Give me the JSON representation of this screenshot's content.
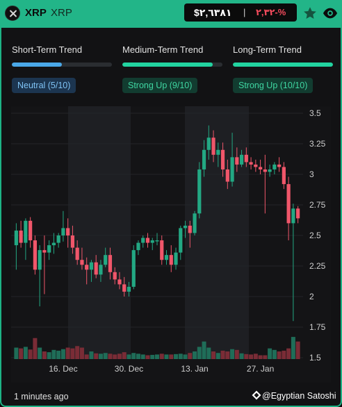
{
  "header": {
    "symbol": "XRP",
    "name": "XRP",
    "price": "$٢,٦٣٨١",
    "separator": "|",
    "change": "٢,٣٢-%",
    "close_icon": "close-icon",
    "star_icon": "star-icon",
    "eye_icon": "eye-icon"
  },
  "trends": [
    {
      "label": "Short-Term Trend",
      "badge": "Neutral (5/10)",
      "level": 0.5,
      "color": "#4aa8e8",
      "kind": "neutral"
    },
    {
      "label": "Medium-Term Trend",
      "badge": "Strong Up (9/10)",
      "level": 0.9,
      "color": "#22d3a0",
      "kind": "up"
    },
    {
      "label": "Long-Term Trend",
      "badge": "Strong Up (10/10)",
      "level": 1.0,
      "color": "#22d3a0",
      "kind": "up"
    }
  ],
  "chart_data": {
    "type": "candlestick",
    "y_ticks": [
      "3.5",
      "3.25",
      "3",
      "2.75",
      "2.5",
      "2.25",
      "2",
      "1.75",
      "1.5"
    ],
    "ylim": [
      1.5,
      3.5
    ],
    "x_labels": [
      "16. Dec",
      "30. Dec",
      "13. Jan",
      "27. Jan"
    ],
    "x_label_index": [
      10,
      24,
      38,
      52
    ],
    "colors": {
      "up": "#23a883",
      "down": "#f0566a",
      "vol_up": "#1f6d58",
      "vol_down": "#7a2c36"
    },
    "candles": [
      [
        2.42,
        2.6,
        2.22,
        2.54
      ],
      [
        2.54,
        2.62,
        2.4,
        2.44
      ],
      [
        2.44,
        2.64,
        2.3,
        2.62
      ],
      [
        2.62,
        2.65,
        2.4,
        2.46
      ],
      [
        2.46,
        2.5,
        2.18,
        2.22
      ],
      [
        2.22,
        2.42,
        1.92,
        2.38
      ],
      [
        2.38,
        2.5,
        2.02,
        2.36
      ],
      [
        2.36,
        2.46,
        2.3,
        2.42
      ],
      [
        2.42,
        2.52,
        2.35,
        2.44
      ],
      [
        2.44,
        2.52,
        2.4,
        2.5
      ],
      [
        2.5,
        2.7,
        2.45,
        2.56
      ],
      [
        2.56,
        2.64,
        2.4,
        2.5
      ],
      [
        2.5,
        2.58,
        2.35,
        2.4
      ],
      [
        2.4,
        2.46,
        2.26,
        2.3
      ],
      [
        2.3,
        2.4,
        2.22,
        2.26
      ],
      [
        2.26,
        2.32,
        2.1,
        2.22
      ],
      [
        2.22,
        2.3,
        2.12,
        2.28
      ],
      [
        2.28,
        2.34,
        2.15,
        2.18
      ],
      [
        2.18,
        2.3,
        2.12,
        2.26
      ],
      [
        2.26,
        2.4,
        2.24,
        2.34
      ],
      [
        2.34,
        2.4,
        2.14,
        2.2
      ],
      [
        2.2,
        2.24,
        2.1,
        2.14
      ],
      [
        2.14,
        2.2,
        2.06,
        2.1
      ],
      [
        2.1,
        2.16,
        2.0,
        2.04
      ],
      [
        2.04,
        2.12,
        2.0,
        2.08
      ],
      [
        2.08,
        2.42,
        2.06,
        2.38
      ],
      [
        2.38,
        2.46,
        2.34,
        2.44
      ],
      [
        2.44,
        2.5,
        2.4,
        2.48
      ],
      [
        2.48,
        2.52,
        2.4,
        2.44
      ],
      [
        2.44,
        2.48,
        2.38,
        2.46
      ],
      [
        2.46,
        2.52,
        2.42,
        2.46
      ],
      [
        2.46,
        2.5,
        2.26,
        2.3
      ],
      [
        2.3,
        2.38,
        2.26,
        2.34
      ],
      [
        2.34,
        2.42,
        2.2,
        2.26
      ],
      [
        2.26,
        2.4,
        2.22,
        2.36
      ],
      [
        2.36,
        2.58,
        2.3,
        2.56
      ],
      [
        2.56,
        2.62,
        2.48,
        2.58
      ],
      [
        2.58,
        2.62,
        2.4,
        2.52
      ],
      [
        2.52,
        2.7,
        2.5,
        2.68
      ],
      [
        2.68,
        3.1,
        2.64,
        3.04
      ],
      [
        3.04,
        3.28,
        2.98,
        3.2
      ],
      [
        3.2,
        3.4,
        3.12,
        3.3
      ],
      [
        3.3,
        3.36,
        3.1,
        3.16
      ],
      [
        3.16,
        3.26,
        3.06,
        3.2
      ],
      [
        3.2,
        3.26,
        2.98,
        3.04
      ],
      [
        3.04,
        3.12,
        2.88,
        2.94
      ],
      [
        2.94,
        3.34,
        2.9,
        3.14
      ],
      [
        3.14,
        3.22,
        3.02,
        3.08
      ],
      [
        3.08,
        3.2,
        3.06,
        3.16
      ],
      [
        3.16,
        3.22,
        3.06,
        3.1
      ],
      [
        3.1,
        3.14,
        3.04,
        3.08
      ],
      [
        3.08,
        3.12,
        3.02,
        3.06
      ],
      [
        3.06,
        3.12,
        3.0,
        3.04
      ],
      [
        3.04,
        3.16,
        2.68,
        3.02
      ],
      [
        3.02,
        3.08,
        2.98,
        3.04
      ],
      [
        3.04,
        3.1,
        3.0,
        3.08
      ],
      [
        3.08,
        3.14,
        3.02,
        3.06
      ],
      [
        3.06,
        3.1,
        2.88,
        2.92
      ],
      [
        2.92,
        2.98,
        2.46,
        2.6
      ],
      [
        2.6,
        2.76,
        1.8,
        2.72
      ],
      [
        2.72,
        2.74,
        2.6,
        2.64
      ]
    ],
    "volumes": [
      0.3,
      0.28,
      0.32,
      0.25,
      0.55,
      0.3,
      0.2,
      0.18,
      0.24,
      0.22,
      0.26,
      0.3,
      0.28,
      0.34,
      0.3,
      0.12,
      0.2,
      0.15,
      0.14,
      0.16,
      0.14,
      0.12,
      0.14,
      0.18,
      0.12,
      0.16,
      0.14,
      0.12,
      0.1,
      0.11,
      0.12,
      0.14,
      0.12,
      0.12,
      0.13,
      0.14,
      0.12,
      0.16,
      0.2,
      0.32,
      0.46,
      0.3,
      0.2,
      0.16,
      0.22,
      0.2,
      0.26,
      0.24,
      0.15,
      0.13,
      0.12,
      0.14,
      0.1,
      0.1,
      0.28,
      0.24,
      0.2,
      0.22,
      0.28,
      0.58,
      0.46
    ]
  },
  "footer": {
    "updated": "1 minutes ago",
    "credit": "@Egyptian Satoshi"
  }
}
